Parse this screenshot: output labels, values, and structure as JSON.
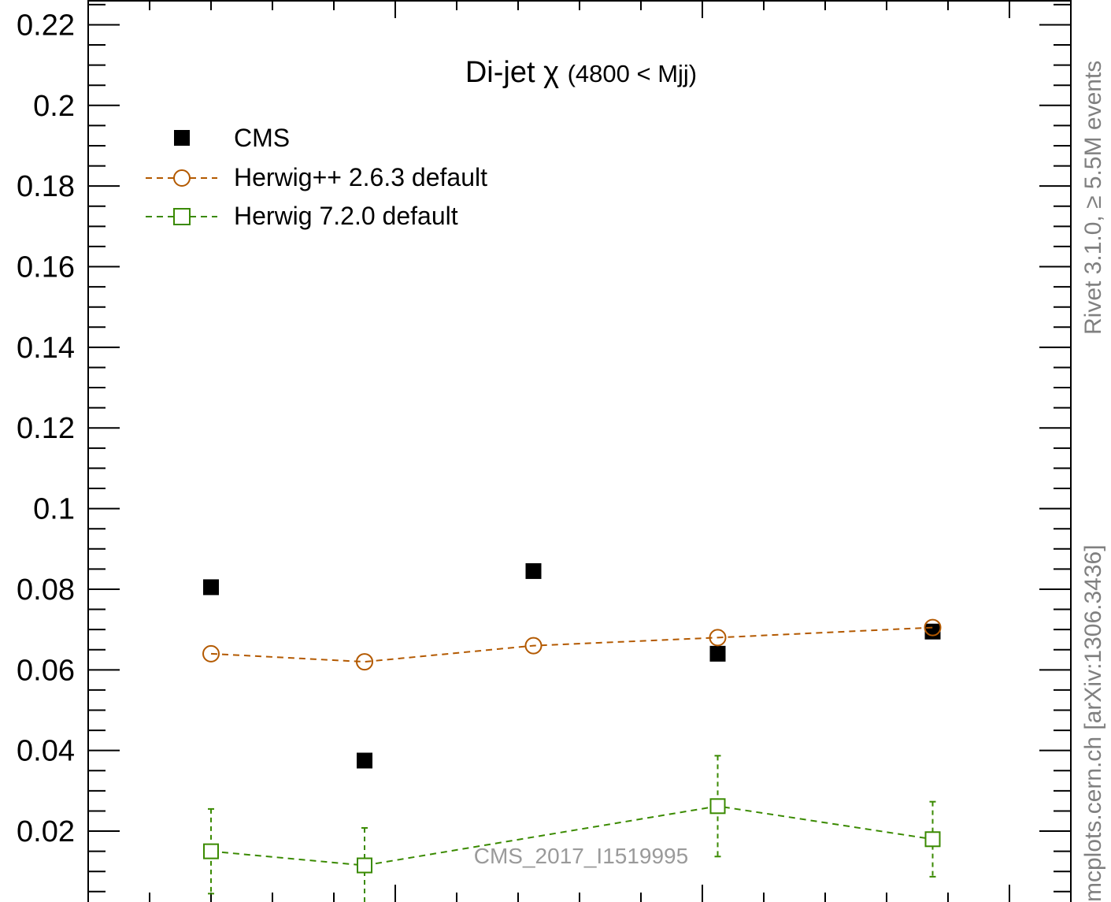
{
  "chart_data": {
    "type": "scatter",
    "title": "Di-jet χ",
    "title_suffix": "(4800 < Mjj)",
    "watermark": "CMS_2017_I1519995",
    "side_label_top": "Rivet 3.1.0, ≥ 5.5M events",
    "side_label_bottom": "mcplots.cern.ch [arXiv:1306.3436]",
    "ylim": [
      0,
      0.225
    ],
    "yticks": [
      {
        "value": 0.02,
        "label": "0.02"
      },
      {
        "value": 0.04,
        "label": "0.04"
      },
      {
        "value": 0.06,
        "label": "0.06"
      },
      {
        "value": 0.08,
        "label": "0.08"
      },
      {
        "value": 0.1,
        "label": "0.1"
      },
      {
        "value": 0.12,
        "label": "0.12"
      },
      {
        "value": 0.14,
        "label": "0.14"
      },
      {
        "value": 0.16,
        "label": "0.16"
      },
      {
        "value": 0.18,
        "label": "0.18"
      },
      {
        "value": 0.2,
        "label": "0.2"
      },
      {
        "value": 0.22,
        "label": "0.22"
      }
    ],
    "series": [
      {
        "name": "CMS",
        "style": "filled-square",
        "color": "#000000",
        "points": [
          {
            "x": 2.0,
            "y": 0.0805
          },
          {
            "x": 4.5,
            "y": 0.0375
          },
          {
            "x": 7.25,
            "y": 0.0845
          },
          {
            "x": 10.25,
            "y": 0.064
          },
          {
            "x": 13.75,
            "y": 0.0695
          }
        ]
      },
      {
        "name": "Herwig++ 2.6.3 default",
        "style": "open-circle",
        "color": "#b35900",
        "points": [
          {
            "x": 2.0,
            "y": 0.064
          },
          {
            "x": 4.5,
            "y": 0.062
          },
          {
            "x": 7.25,
            "y": 0.066
          },
          {
            "x": 10.25,
            "y": 0.068
          },
          {
            "x": 13.75,
            "y": 0.0705
          }
        ]
      },
      {
        "name": "Herwig 7.2.0 default",
        "style": "open-square",
        "color": "#3a8a00",
        "points": [
          {
            "x": 2.0,
            "y": 0.015,
            "err": 0.0105
          },
          {
            "x": 4.5,
            "y": 0.0115,
            "err": 0.0093
          },
          {
            "x": 10.25,
            "y": 0.0262,
            "err": 0.0125
          },
          {
            "x": 13.75,
            "y": 0.018,
            "err": 0.0093
          }
        ]
      }
    ],
    "xlim": [
      0,
      16
    ]
  }
}
